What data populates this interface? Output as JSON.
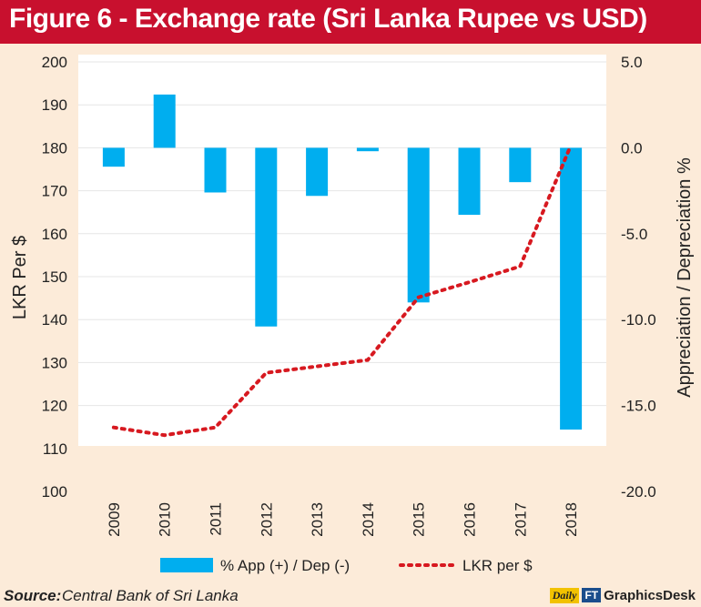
{
  "title": "Figure 6 - Exchange rate (Sri Lanka Rupee vs USD)",
  "source": {
    "label": "Source:",
    "text": "Central Bank of Sri Lanka"
  },
  "logo": {
    "daily": "Daily",
    "ft": "FT",
    "brand": "GraphicsDesk"
  },
  "colors": {
    "title_bg": "#c8102e",
    "bar": "#00aeef",
    "line": "#d71920",
    "plot_bg": "#ffffff",
    "page_bg": "#fcebd9"
  },
  "chart_data": {
    "type": "bar",
    "categories": [
      "2009",
      "2010",
      "2011",
      "2012",
      "2013",
      "2014",
      "2015",
      "2016",
      "2017",
      "2018"
    ],
    "series": [
      {
        "name": "% App (+) / Dep (-)",
        "type": "bar",
        "axis": "right",
        "values": [
          -1.1,
          3.1,
          -2.6,
          -10.4,
          -2.8,
          -0.2,
          -9.0,
          -3.9,
          -2.0,
          -16.4
        ]
      },
      {
        "name": "LKR per $",
        "type": "line",
        "style": "dotted",
        "axis": "left",
        "values": [
          114.9,
          113.1,
          114.9,
          127.6,
          129.1,
          130.6,
          145.2,
          148.7,
          152.4,
          180.6
        ]
      }
    ],
    "ylabel": "LKR Per $",
    "ylabel_right": "Appreciation / Depreciation %",
    "ylim": [
      100,
      200
    ],
    "ylim_right": [
      -20.0,
      5.0
    ],
    "yticks": [
      "200",
      "190",
      "180",
      "170",
      "160",
      "150",
      "140",
      "130",
      "120",
      "110",
      "100"
    ],
    "yticks_right": [
      "5.0",
      "0.0",
      "-5.0",
      "-10.0",
      "-15.0",
      "-20.0"
    ],
    "legend_position": "bottom"
  }
}
